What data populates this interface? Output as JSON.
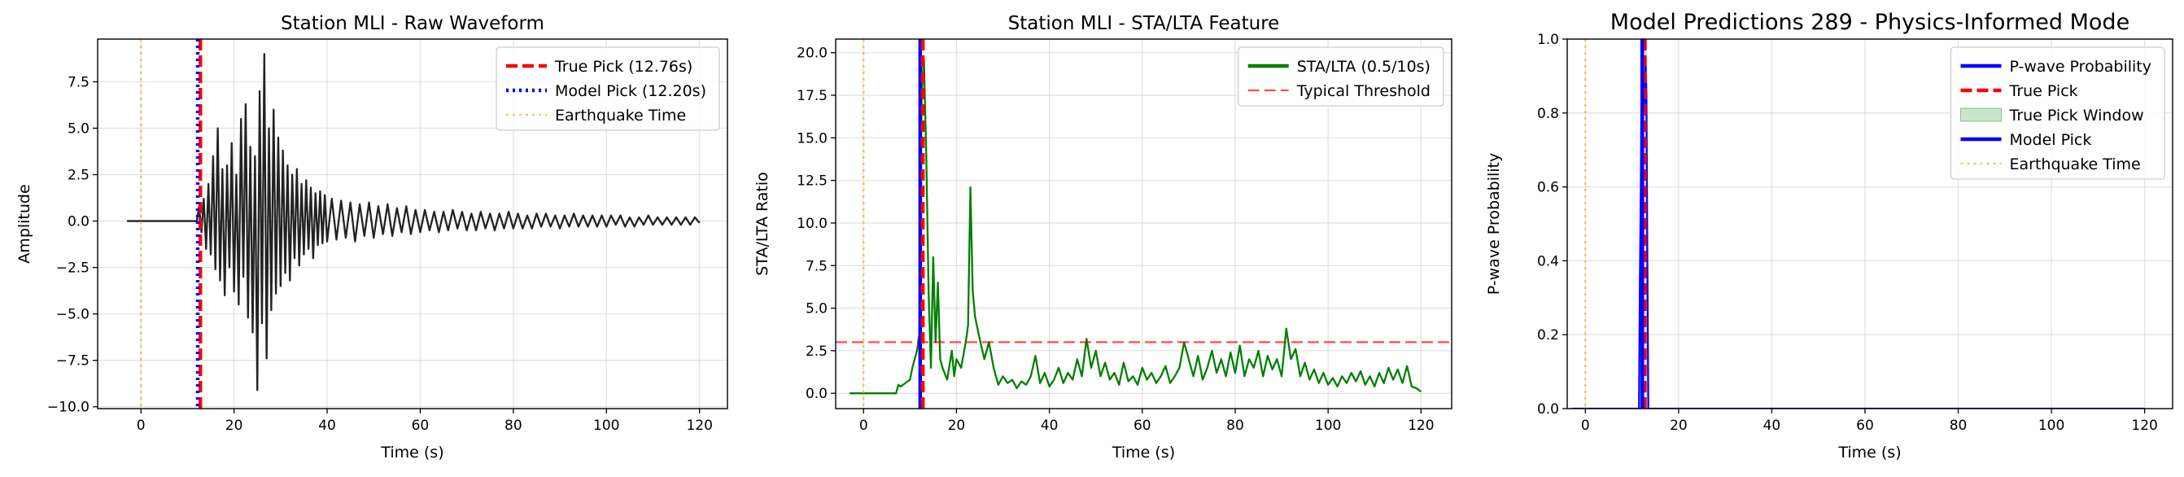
{
  "chart_data": [
    {
      "type": "line",
      "title": "Station MLI - Raw Waveform",
      "xlabel": "Time (s)",
      "ylabel": "Amplitude",
      "xlim": [
        -9.3,
        126
      ],
      "xticks": [
        0,
        20,
        40,
        60,
        80,
        100,
        120
      ],
      "ylim": [
        -10.1,
        9.8
      ],
      "yticks": [
        {
          "value": -10,
          "label": "−10.0"
        },
        {
          "value": -7.5,
          "label": "−7.5"
        },
        {
          "value": -5,
          "label": "−5.0"
        },
        {
          "value": -2.5,
          "label": "−2.5"
        },
        {
          "value": 0,
          "label": "0.0"
        },
        {
          "value": 2.5,
          "label": "2.5"
        },
        {
          "value": 5,
          "label": "5.0"
        },
        {
          "value": 7.5,
          "label": "7.5"
        }
      ],
      "grid": true,
      "legend": "upper right",
      "series": [
        {
          "color": "#222222",
          "linestyle": "solid",
          "x": [
            -3,
            12,
            12.5,
            13,
            13.5,
            14,
            14.5,
            15,
            15.5,
            16,
            16.5,
            17,
            17.5,
            18,
            18.5,
            19,
            19.5,
            20,
            20.5,
            21,
            21.5,
            22,
            22.5,
            23,
            23.5,
            24,
            24.5,
            25,
            25.5,
            26,
            26.5,
            27,
            27.5,
            28,
            28.5,
            29,
            29.5,
            30,
            30.5,
            31,
            31.5,
            32,
            32.5,
            33,
            33.5,
            34,
            34.5,
            35,
            35.5,
            36,
            36.5,
            37,
            37.5,
            38,
            38.5,
            39,
            39.5,
            40,
            41,
            42,
            43,
            44,
            45,
            46,
            47,
            48,
            49,
            50,
            51,
            52,
            53,
            54,
            55,
            56,
            57,
            58,
            59,
            60,
            61,
            62,
            63,
            64,
            65,
            66,
            67,
            68,
            69,
            70,
            71,
            72,
            73,
            74,
            75,
            76,
            77,
            78,
            79,
            80,
            81,
            82,
            83,
            84,
            85,
            86,
            87,
            88,
            89,
            90,
            91,
            92,
            93,
            94,
            95,
            96,
            97,
            98,
            99,
            100,
            101,
            102,
            103,
            104,
            105,
            106,
            107,
            108,
            109,
            110,
            111,
            112,
            113,
            114,
            115,
            116,
            117,
            118,
            119,
            120
          ],
          "values": [
            0,
            0,
            0.8,
            -0.6,
            1.2,
            -1.5,
            2.0,
            -1.8,
            3.5,
            -2.6,
            5.0,
            -3.2,
            2.8,
            -4.0,
            3.0,
            -2.5,
            4.2,
            -3.8,
            2.5,
            -4.5,
            5.5,
            -3.0,
            6.3,
            -5.2,
            4.0,
            -6.0,
            3.5,
            -9.1,
            7.0,
            -5.5,
            9.0,
            -7.4,
            5.0,
            -4.8,
            6.0,
            -3.9,
            4.5,
            -3.5,
            3.8,
            -2.8,
            3.0,
            -3.2,
            2.5,
            -2.0,
            2.8,
            -2.4,
            2.0,
            -1.8,
            2.2,
            -1.5,
            1.8,
            -2.0,
            1.5,
            -1.3,
            1.6,
            -1.2,
            1.4,
            -1.1,
            1.2,
            -1.0,
            1.1,
            -0.9,
            1.0,
            -1.1,
            0.9,
            -0.8,
            1.0,
            -0.9,
            0.8,
            -0.7,
            0.9,
            -0.8,
            0.7,
            -0.6,
            0.8,
            -0.7,
            0.6,
            -0.6,
            0.6,
            -0.5,
            0.5,
            -0.6,
            0.5,
            -0.5,
            0.6,
            -0.4,
            0.5,
            -0.5,
            0.4,
            -0.5,
            0.5,
            -0.4,
            0.4,
            -0.5,
            0.4,
            -0.4,
            0.5,
            -0.4,
            0.4,
            -0.4,
            0.3,
            -0.4,
            0.4,
            -0.3,
            0.4,
            -0.3,
            0.3,
            -0.4,
            0.3,
            -0.3,
            0.4,
            -0.3,
            0.3,
            -0.3,
            0.3,
            -0.3,
            0.3,
            -0.3,
            0.3,
            -0.2,
            0.3,
            -0.3,
            0.2,
            -0.3,
            0.2,
            -0.2,
            0.3,
            -0.2,
            0.2,
            -0.2,
            0.2,
            -0.2,
            0.2,
            -0.2,
            0.2,
            -0.2,
            0.2,
            -0.1
          ]
        }
      ],
      "overlays": [
        {
          "kind": "vline",
          "name": "True Pick (12.76s)",
          "x": 12.76,
          "color": "#ff0000",
          "linestyle": "dashed",
          "alpha": 1
        },
        {
          "kind": "vline",
          "name": "Model Pick (12.20s)",
          "x": 12.2,
          "color": "#0000ff",
          "linestyle": "dotted",
          "alpha": 1
        },
        {
          "kind": "vline",
          "name": "Earthquake Time",
          "x": 0,
          "color": "#ffa500",
          "linestyle": "dotted",
          "alpha": 0.7
        }
      ]
    },
    {
      "type": "line",
      "title": "Station MLI - STA/LTA Feature",
      "xlabel": "Time (s)",
      "ylabel": "STA/LTA Ratio",
      "xlim": [
        -6,
        126.6
      ],
      "xticks": [
        0,
        20,
        40,
        60,
        80,
        100,
        120
      ],
      "ylim": [
        -0.9,
        20.8
      ],
      "yticks": [
        {
          "value": 0,
          "label": "0.0"
        },
        {
          "value": 2.5,
          "label": "2.5"
        },
        {
          "value": 5,
          "label": "5.0"
        },
        {
          "value": 7.5,
          "label": "7.5"
        },
        {
          "value": 10,
          "label": "10.0"
        },
        {
          "value": 12.5,
          "label": "12.5"
        },
        {
          "value": 15,
          "label": "15.0"
        },
        {
          "value": 17.5,
          "label": "17.5"
        },
        {
          "value": 20,
          "label": "20.0"
        }
      ],
      "grid": true,
      "legend": "upper right",
      "series": [
        {
          "name": "STA/LTA (0.5/10s)",
          "color": "#008000",
          "linestyle": "solid",
          "x": [
            -3,
            7,
            7.5,
            8,
            9,
            10,
            10.5,
            11,
            11.5,
            12,
            12.5,
            13,
            13.5,
            14,
            14.5,
            15,
            15.5,
            16,
            16.5,
            17,
            18,
            19,
            19.5,
            20,
            21,
            22,
            22.5,
            23,
            23.5,
            24,
            25,
            26,
            27,
            28,
            29,
            30,
            31,
            32,
            33,
            34,
            35,
            36,
            37,
            38,
            39,
            40,
            41,
            42,
            43,
            44,
            45,
            46,
            47,
            48,
            49,
            50,
            51,
            52,
            53,
            54,
            55,
            56,
            57,
            58,
            59,
            60,
            61,
            62,
            63,
            64,
            65,
            66,
            67,
            68,
            69,
            70,
            71,
            72,
            73,
            74,
            75,
            76,
            77,
            78,
            79,
            80,
            81,
            82,
            83,
            84,
            85,
            86,
            87,
            88,
            89,
            90,
            91,
            92,
            93,
            94,
            95,
            96,
            97,
            98,
            99,
            100,
            101,
            102,
            103,
            104,
            105,
            106,
            107,
            108,
            109,
            110,
            111,
            112,
            113,
            114,
            115,
            116,
            117,
            118,
            119,
            120
          ],
          "values": [
            0,
            0,
            0.5,
            0.4,
            0.6,
            0.8,
            1.5,
            2.0,
            2.5,
            3.5,
            17.5,
            19.6,
            14,
            6,
            1.5,
            8.0,
            3,
            6.5,
            2,
            1.5,
            0.8,
            2.5,
            1.0,
            2.0,
            1.5,
            3.0,
            4,
            12.1,
            6,
            4.5,
            3.2,
            2.0,
            3.0,
            1.5,
            0.5,
            1.0,
            0.6,
            0.8,
            0.3,
            0.7,
            0.5,
            1.0,
            2.2,
            0.6,
            1.2,
            0.4,
            0.8,
            1.5,
            0.6,
            1.2,
            0.8,
            2.0,
            1.0,
            3.2,
            1.5,
            2.5,
            1.0,
            1.8,
            0.8,
            1.2,
            0.5,
            1.8,
            0.7,
            1.0,
            0.5,
            1.5,
            0.8,
            1.2,
            0.6,
            1.0,
            1.6,
            0.6,
            1.0,
            1.5,
            3.0,
            2.0,
            1.0,
            2.2,
            0.8,
            1.5,
            2.5,
            1.2,
            2.0,
            1.0,
            2.4,
            1.2,
            2.8,
            1.0,
            2.0,
            1.5,
            2.5,
            1.0,
            2.2,
            1.4,
            2.0,
            1.0,
            3.8,
            2.0,
            2.6,
            1.0,
            1.8,
            0.8,
            1.4,
            0.6,
            1.2,
            0.5,
            0.9,
            0.4,
            1.0,
            0.6,
            1.2,
            0.7,
            1.3,
            0.5,
            1.0,
            0.4,
            1.2,
            0.6,
            1.5,
            0.8,
            1.4,
            0.6,
            1.6,
            0.4,
            0.3,
            0.1
          ]
        }
      ],
      "overlays": [
        {
          "kind": "hline",
          "name": "Typical Threshold",
          "y": 3,
          "color": "#ff0000",
          "linestyle": "dashed",
          "alpha": 0.7
        },
        {
          "kind": "vline",
          "x": 12.2,
          "color": "#0000ff",
          "linestyle": "solid",
          "alpha": 1
        },
        {
          "kind": "vline",
          "x": 12.76,
          "color": "#ff0000",
          "linestyle": "dashed",
          "alpha": 1
        },
        {
          "kind": "vline",
          "x": 0,
          "color": "#ffa500",
          "linestyle": "dotted",
          "alpha": 0.7
        }
      ]
    },
    {
      "type": "line",
      "title": "Model Predictions 289 - Physics-Informed Mode",
      "ylabel": "P-wave Probability",
      "xlabel": "Time (s)",
      "xlim": [
        -3.9,
        126
      ],
      "xticks": [
        0,
        20,
        40,
        60,
        80,
        100,
        120
      ],
      "ylim": [
        0,
        1
      ],
      "yticks": [
        {
          "value": 0,
          "label": "0.0"
        },
        0.2,
        0.4,
        0.6,
        0.8,
        {
          "value": 1,
          "label": "1.0"
        }
      ],
      "grid": true,
      "legend": "upper right",
      "series": [
        {
          "name": "P-wave Probability",
          "color": "#0000ff",
          "linestyle": "solid",
          "x": [
            -3,
            11.5,
            11.7,
            11.9,
            12.1,
            12.3,
            12.5,
            12.7,
            12.9,
            13.1,
            13.3,
            13.5,
            120
          ],
          "values": [
            0,
            0,
            0.35,
            0.6,
            1.0,
            0.75,
            0.9,
            0.8,
            0.95,
            0.85,
            0.4,
            0,
            0
          ]
        }
      ],
      "overlays": [
        {
          "kind": "vline",
          "name": "True Pick",
          "x": 12.76,
          "color": "#ff0000",
          "linestyle": "dashed",
          "alpha": 1
        },
        {
          "kind": "span",
          "name": "True Pick Window",
          "x": [
            12.26,
            13.26
          ],
          "color": "#008000",
          "alpha": 0.2
        },
        {
          "kind": "vline",
          "name": "Model Pick",
          "x": 12.2,
          "color": "#0000ff",
          "linestyle": "solid",
          "alpha": 1
        },
        {
          "kind": "vline",
          "name": "Earthquake Time",
          "x": 0,
          "color": "#ffa500",
          "linestyle": "dotted",
          "alpha": 0.7
        }
      ]
    }
  ]
}
